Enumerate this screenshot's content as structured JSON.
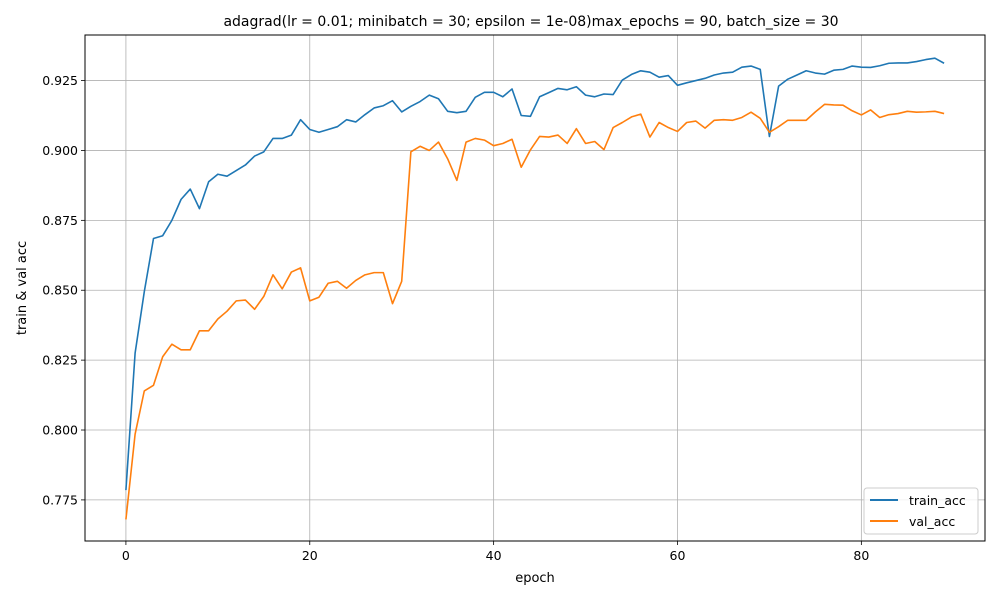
{
  "chart_data": {
    "type": "line",
    "title": "adagrad(lr = 0.01; minibatch = 30; epsilon = 1e-08)max_epochs = 90, batch_size = 30",
    "xlabel": "epoch",
    "ylabel": "train & val acc",
    "xlim": [
      -4.45,
      93.45
    ],
    "ylim": [
      0.7603,
      0.9413
    ],
    "xticks": [
      0,
      20,
      40,
      60,
      80
    ],
    "yticks": [
      0.775,
      0.8,
      0.825,
      0.85,
      0.875,
      0.9,
      0.925
    ],
    "grid": true,
    "legend_position": "lower-right",
    "x": [
      0,
      1,
      2,
      3,
      4,
      5,
      6,
      7,
      8,
      9,
      10,
      11,
      12,
      13,
      14,
      15,
      16,
      17,
      18,
      19,
      20,
      21,
      22,
      23,
      24,
      25,
      26,
      27,
      28,
      29,
      30,
      31,
      32,
      33,
      34,
      35,
      36,
      37,
      38,
      39,
      40,
      41,
      42,
      43,
      44,
      45,
      46,
      47,
      48,
      49,
      50,
      51,
      52,
      53,
      54,
      55,
      56,
      57,
      58,
      59,
      60,
      61,
      62,
      63,
      64,
      65,
      66,
      67,
      68,
      69,
      70,
      71,
      72,
      73,
      74,
      75,
      76,
      77,
      78,
      79,
      80,
      81,
      82,
      83,
      84,
      85,
      86,
      87,
      88,
      89
    ],
    "series": [
      {
        "name": "train_acc",
        "color": "#1f77b4",
        "values": [
          0.7785,
          0.8275,
          0.8495,
          0.8685,
          0.8695,
          0.875,
          0.8825,
          0.8862,
          0.8792,
          0.8888,
          0.8915,
          0.8908,
          0.8928,
          0.8948,
          0.898,
          0.8995,
          0.9043,
          0.9043,
          0.9055,
          0.911,
          0.9075,
          0.9065,
          0.9075,
          0.9085,
          0.911,
          0.9102,
          0.9128,
          0.9152,
          0.916,
          0.9178,
          0.9138,
          0.9158,
          0.9175,
          0.9198,
          0.9185,
          0.914,
          0.9135,
          0.914,
          0.919,
          0.9208,
          0.9208,
          0.9192,
          0.922,
          0.9125,
          0.9122,
          0.9192,
          0.9207,
          0.9222,
          0.9217,
          0.9228,
          0.9198,
          0.9192,
          0.9202,
          0.92,
          0.9252,
          0.9272,
          0.9285,
          0.928,
          0.9262,
          0.9268,
          0.9233,
          0.9242,
          0.925,
          0.9258,
          0.927,
          0.9277,
          0.928,
          0.9298,
          0.9302,
          0.929,
          0.905,
          0.923,
          0.9255,
          0.927,
          0.9285,
          0.9277,
          0.9273,
          0.9287,
          0.929,
          0.9302,
          0.9298,
          0.9297,
          0.9303,
          0.9312,
          0.9313,
          0.9313,
          0.9318,
          0.9325,
          0.933,
          0.9312
        ]
      },
      {
        "name": "val_acc",
        "color": "#ff7f0e",
        "values": [
          0.768,
          0.7985,
          0.814,
          0.816,
          0.8262,
          0.8307,
          0.8287,
          0.8287,
          0.8355,
          0.8355,
          0.8397,
          0.8425,
          0.8462,
          0.8465,
          0.8432,
          0.8478,
          0.8555,
          0.8505,
          0.8565,
          0.858,
          0.8462,
          0.8475,
          0.8525,
          0.8532,
          0.8507,
          0.8535,
          0.8555,
          0.8563,
          0.8563,
          0.8452,
          0.8532,
          0.8995,
          0.9015,
          0.9,
          0.903,
          0.897,
          0.8893,
          0.903,
          0.9043,
          0.9037,
          0.9017,
          0.9025,
          0.904,
          0.894,
          0.9002,
          0.905,
          0.9048,
          0.9055,
          0.9025,
          0.9078,
          0.9025,
          0.9032,
          0.9003,
          0.9082,
          0.91,
          0.912,
          0.913,
          0.9048,
          0.91,
          0.9082,
          0.9068,
          0.91,
          0.9105,
          0.908,
          0.9108,
          0.911,
          0.9108,
          0.9118,
          0.9137,
          0.9115,
          0.9065,
          0.9085,
          0.9108,
          0.9108,
          0.9108,
          0.9138,
          0.9165,
          0.9163,
          0.9162,
          0.9142,
          0.9127,
          0.9145,
          0.9118,
          0.9128,
          0.9132,
          0.914,
          0.9137,
          0.9138,
          0.914,
          0.9132
        ]
      }
    ]
  }
}
